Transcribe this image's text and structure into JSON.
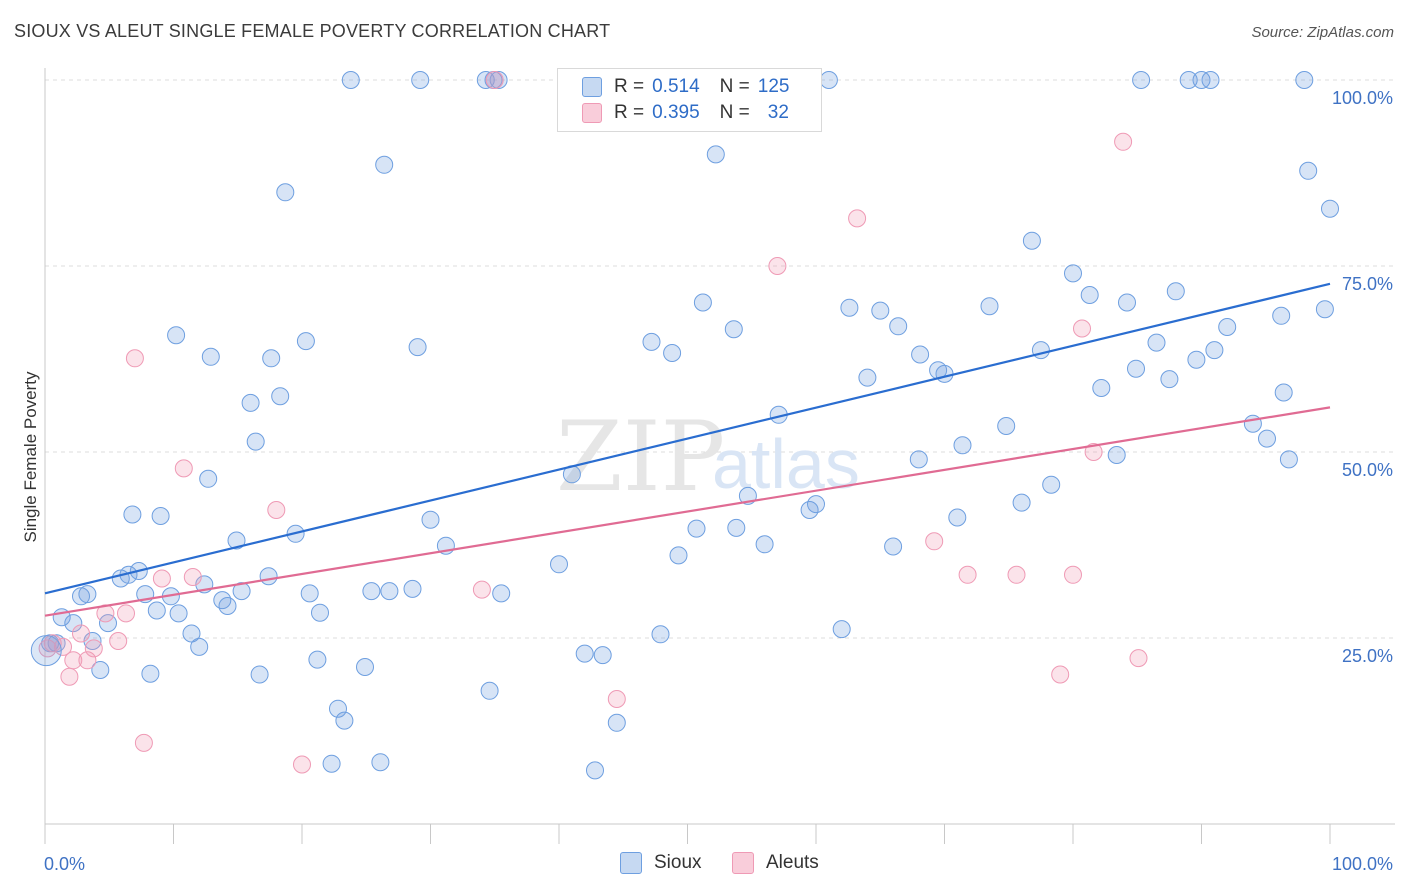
{
  "title": "SIOUX VS ALEUT SINGLE FEMALE POVERTY CORRELATION CHART",
  "source": "Source: ZipAtlas.com",
  "watermark": {
    "zip": "ZIP",
    "atlas": "atlas"
  },
  "legend": {
    "series": [
      {
        "name": "Sioux",
        "r_label": "R =",
        "r_value": "0.514",
        "n_label": "N =",
        "n_value": "125",
        "color": "#6e9fe0"
      },
      {
        "name": "Aleuts",
        "r_label": "R =",
        "r_value": "0.395",
        "n_label": "N =",
        "n_value": "32",
        "color": "#ef9ab5"
      }
    ]
  },
  "chart_data": {
    "type": "scatter",
    "title": "SIOUX VS ALEUT SINGLE FEMALE POVERTY CORRELATION CHART",
    "xlabel": "",
    "ylabel": "Single Female Poverty",
    "xlim": [
      0,
      100
    ],
    "ylim": [
      0,
      100
    ],
    "x_tick_labels": [
      "0.0%",
      "100.0%"
    ],
    "y_tick_labels": [
      "25.0%",
      "50.0%",
      "75.0%",
      "100.0%"
    ],
    "y_ticks": [
      25,
      50,
      75,
      100
    ],
    "grid": true,
    "legend_placement": "top-center",
    "series": [
      {
        "name": "Sioux",
        "color": "#6e9fe0",
        "trend": {
          "x": [
            0,
            100
          ],
          "y": [
            31.0,
            72.6
          ]
        },
        "points": [
          [
            0.4,
            24.3
          ],
          [
            0.9,
            24.3
          ],
          [
            1.3,
            27.8
          ],
          [
            2.2,
            27.0
          ],
          [
            2.8,
            30.6
          ],
          [
            3.3,
            30.9
          ],
          [
            3.7,
            24.6
          ],
          [
            4.3,
            20.7
          ],
          [
            4.9,
            27.0
          ],
          [
            5.9,
            33.0
          ],
          [
            6.5,
            33.5
          ],
          [
            6.8,
            41.6
          ],
          [
            7.3,
            34.0
          ],
          [
            7.8,
            30.9
          ],
          [
            8.2,
            20.2
          ],
          [
            8.7,
            28.7
          ],
          [
            9.0,
            41.4
          ],
          [
            9.8,
            30.6
          ],
          [
            10.2,
            65.7
          ],
          [
            10.4,
            28.3
          ],
          [
            11.4,
            25.6
          ],
          [
            12.0,
            23.8
          ],
          [
            12.4,
            32.2
          ],
          [
            12.7,
            46.4
          ],
          [
            12.9,
            62.8
          ],
          [
            13.8,
            30.1
          ],
          [
            14.2,
            29.3
          ],
          [
            14.9,
            38.1
          ],
          [
            15.3,
            31.3
          ],
          [
            16.0,
            56.6
          ],
          [
            16.4,
            51.4
          ],
          [
            16.7,
            20.1
          ],
          [
            17.4,
            33.3
          ],
          [
            17.6,
            62.6
          ],
          [
            18.3,
            57.5
          ],
          [
            18.7,
            84.9
          ],
          [
            19.5,
            39.0
          ],
          [
            20.3,
            64.9
          ],
          [
            20.6,
            31.0
          ],
          [
            21.2,
            22.1
          ],
          [
            21.4,
            28.4
          ],
          [
            22.3,
            8.1
          ],
          [
            22.8,
            15.5
          ],
          [
            23.3,
            13.9
          ],
          [
            23.8,
            100.0
          ],
          [
            24.9,
            21.1
          ],
          [
            25.4,
            31.3
          ],
          [
            26.1,
            8.3
          ],
          [
            26.4,
            88.6
          ],
          [
            26.8,
            31.3
          ],
          [
            28.6,
            31.6
          ],
          [
            29.0,
            64.1
          ],
          [
            29.2,
            100.0
          ],
          [
            30.0,
            40.9
          ],
          [
            31.2,
            37.4
          ],
          [
            34.3,
            100.0
          ],
          [
            34.6,
            17.9
          ],
          [
            34.9,
            100.0
          ],
          [
            35.3,
            100.0
          ],
          [
            35.5,
            31.0
          ],
          [
            40.0,
            34.9
          ],
          [
            41.0,
            47.0
          ],
          [
            42.0,
            22.9
          ],
          [
            42.8,
            7.2
          ],
          [
            43.4,
            22.7
          ],
          [
            44.0,
            100.0
          ],
          [
            44.5,
            13.6
          ],
          [
            47.2,
            64.8
          ],
          [
            47.9,
            25.5
          ],
          [
            48.8,
            63.3
          ],
          [
            49.3,
            36.1
          ],
          [
            50.7,
            39.7
          ],
          [
            51.2,
            70.1
          ],
          [
            52.2,
            90.0
          ],
          [
            53.6,
            66.5
          ],
          [
            53.8,
            39.8
          ],
          [
            54.7,
            44.1
          ],
          [
            56.0,
            37.6
          ],
          [
            57.1,
            55.0
          ],
          [
            59.5,
            42.2
          ],
          [
            60.0,
            43.0
          ],
          [
            61.0,
            100.0
          ],
          [
            62.0,
            26.2
          ],
          [
            62.6,
            69.4
          ],
          [
            64.0,
            60.0
          ],
          [
            65.0,
            69.0
          ],
          [
            66.0,
            37.3
          ],
          [
            66.4,
            66.9
          ],
          [
            68.0,
            49.0
          ],
          [
            68.1,
            63.1
          ],
          [
            69.5,
            61.0
          ],
          [
            70.0,
            60.5
          ],
          [
            71.0,
            41.2
          ],
          [
            71.4,
            50.9
          ],
          [
            73.5,
            69.6
          ],
          [
            74.8,
            53.5
          ],
          [
            76.0,
            43.2
          ],
          [
            76.8,
            78.4
          ],
          [
            77.5,
            63.7
          ],
          [
            78.3,
            45.6
          ],
          [
            80.0,
            74.0
          ],
          [
            81.3,
            71.1
          ],
          [
            82.2,
            58.6
          ],
          [
            83.4,
            49.6
          ],
          [
            84.2,
            70.1
          ],
          [
            84.9,
            61.2
          ],
          [
            85.3,
            100.0
          ],
          [
            86.5,
            64.7
          ],
          [
            87.5,
            59.8
          ],
          [
            88.0,
            71.6
          ],
          [
            89.0,
            100.0
          ],
          [
            89.6,
            62.4
          ],
          [
            90.0,
            100.0
          ],
          [
            90.7,
            100.0
          ],
          [
            91.0,
            63.7
          ],
          [
            92.0,
            66.8
          ],
          [
            94.0,
            53.8
          ],
          [
            95.1,
            51.8
          ],
          [
            96.2,
            68.3
          ],
          [
            96.4,
            58.0
          ],
          [
            96.8,
            49.0
          ],
          [
            98.0,
            100.0
          ],
          [
            98.3,
            87.8
          ],
          [
            99.6,
            69.2
          ],
          [
            100.0,
            82.7
          ]
        ]
      },
      {
        "name": "Aleuts",
        "color": "#ef9ab5",
        "trend": {
          "x": [
            0,
            100
          ],
          "y": [
            28.0,
            56.0
          ]
        },
        "points": [
          [
            0.2,
            23.6
          ],
          [
            0.6,
            24.3
          ],
          [
            1.4,
            23.8
          ],
          [
            1.9,
            19.8
          ],
          [
            2.2,
            22.0
          ],
          [
            2.8,
            25.6
          ],
          [
            3.3,
            22.0
          ],
          [
            3.8,
            23.6
          ],
          [
            4.7,
            28.3
          ],
          [
            5.7,
            24.6
          ],
          [
            6.3,
            28.3
          ],
          [
            7.0,
            62.6
          ],
          [
            7.7,
            10.9
          ],
          [
            9.1,
            33.0
          ],
          [
            10.8,
            47.8
          ],
          [
            11.5,
            33.2
          ],
          [
            18.0,
            42.2
          ],
          [
            20.0,
            8.0
          ],
          [
            34.0,
            31.5
          ],
          [
            35.0,
            100.0
          ],
          [
            44.5,
            16.8
          ],
          [
            57.0,
            75.0
          ],
          [
            63.2,
            81.4
          ],
          [
            69.2,
            38.0
          ],
          [
            71.8,
            33.5
          ],
          [
            75.6,
            33.5
          ],
          [
            79.0,
            20.1
          ],
          [
            80.0,
            33.5
          ],
          [
            80.7,
            66.6
          ],
          [
            81.6,
            50.0
          ],
          [
            83.9,
            91.7
          ],
          [
            85.1,
            22.3
          ]
        ]
      }
    ]
  }
}
